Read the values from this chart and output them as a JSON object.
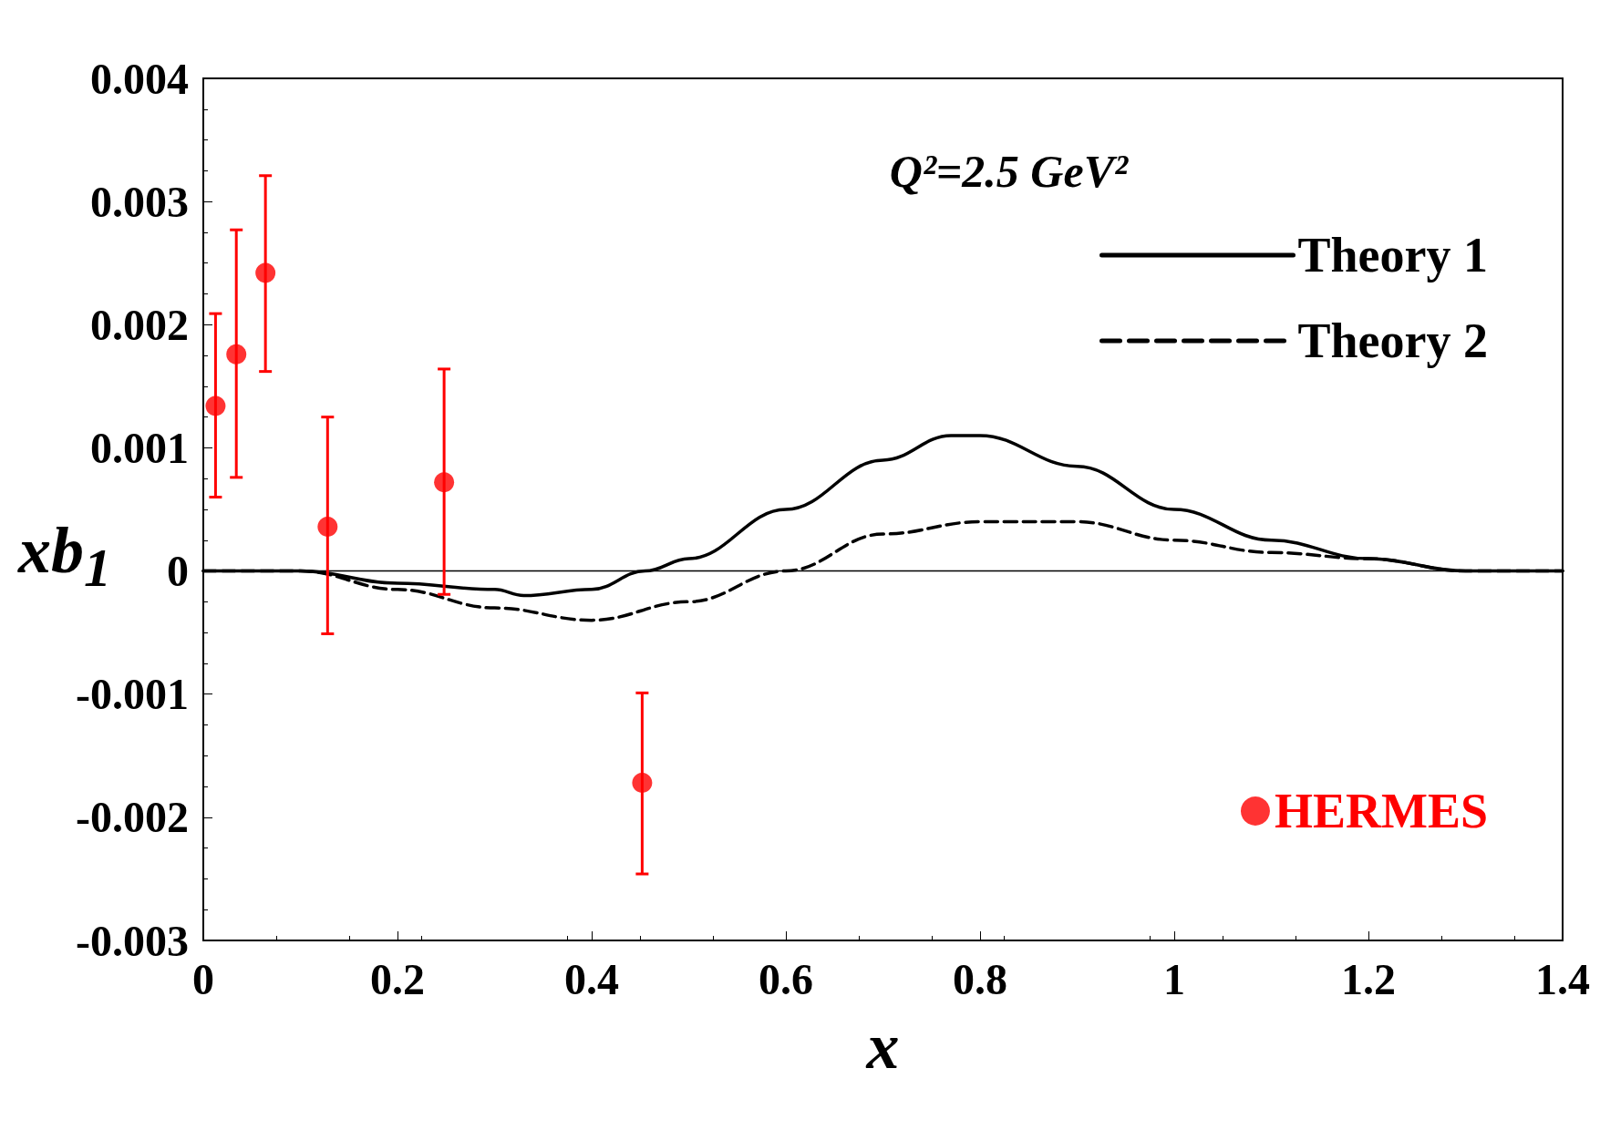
{
  "chart_data": {
    "type": "line",
    "xlabel": "x",
    "ylabel": "xb$_{1}$",
    "annotations": [
      "Q²=2.5 GeV²"
    ],
    "xlim": [
      0,
      1.4
    ],
    "ylim": [
      -0.003,
      0.004
    ],
    "xticks": [
      0,
      0.2,
      0.4,
      0.6,
      0.8,
      1,
      1.2,
      1.4
    ],
    "yticks": [
      -0.003,
      -0.002,
      -0.001,
      0,
      0.001,
      0.002,
      0.003,
      0.004
    ],
    "grid": false,
    "legend": "right",
    "ref_lines": [
      {
        "axis": "y",
        "value": 0,
        "color": "#000000"
      }
    ],
    "series": [
      {
        "name": "Theory 1",
        "color": "#000000",
        "line_style": "solid",
        "marker": "none",
        "x": [
          0,
          0.1,
          0.2,
          0.3,
          0.33,
          0.4,
          0.455,
          0.5,
          0.6,
          0.7,
          0.77,
          0.8,
          0.9,
          1.0,
          1.1,
          1.2,
          1.3,
          1.4
        ],
        "values": [
          0,
          0,
          -0.0001,
          -0.00015,
          -0.0002,
          -0.00015,
          0,
          0.0001,
          0.0005,
          0.0009,
          0.0011,
          0.0011,
          0.00085,
          0.0005,
          0.00025,
          0.0001,
          0,
          0
        ]
      },
      {
        "name": "Theory 2",
        "color": "#000000",
        "line_style": "dashed",
        "marker": "none",
        "x": [
          0,
          0.1,
          0.2,
          0.3,
          0.4,
          0.5,
          0.6,
          0.7,
          0.8,
          0.9,
          1.0,
          1.1,
          1.2,
          1.3,
          1.4
        ],
        "values": [
          0,
          0,
          -0.00015,
          -0.0003,
          -0.0004,
          -0.00025,
          0,
          0.0003,
          0.0004,
          0.0004,
          0.00025,
          0.00015,
          0.0001,
          0,
          0
        ]
      },
      {
        "name": "HERMES",
        "type": "scatter",
        "color": "#ff0000",
        "marker": "circle",
        "x": [
          0.0126,
          0.034,
          0.064,
          0.128,
          0.248,
          0.452
        ],
        "values": [
          0.00134,
          0.00176,
          0.00242,
          0.00036,
          0.00072,
          -0.00172
        ],
        "errors": [
          [
            0.0006,
            0.00209
          ],
          [
            0.00076,
            0.00277
          ],
          [
            0.00162,
            0.00321
          ],
          [
            -0.00051,
            0.00125
          ],
          [
            -0.00019,
            0.00164
          ],
          [
            -0.00246,
            -0.00099
          ]
        ]
      }
    ]
  }
}
